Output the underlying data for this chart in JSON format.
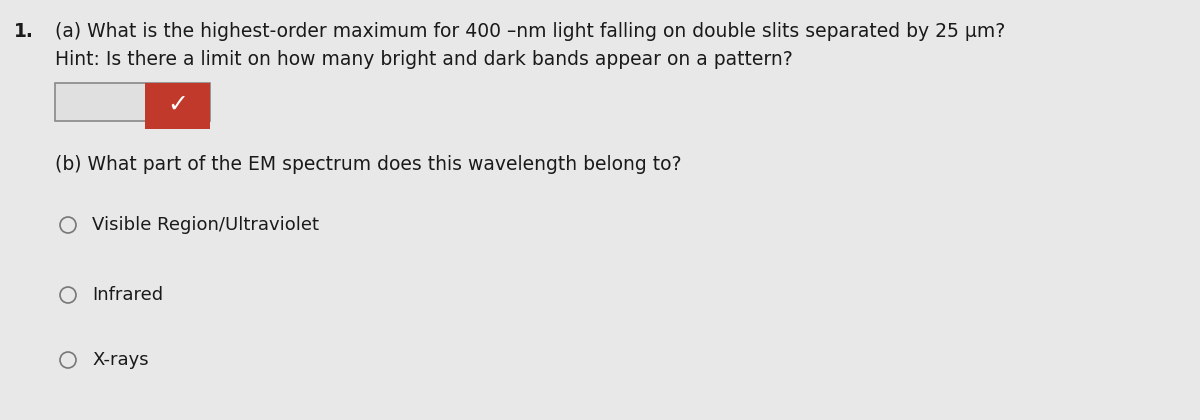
{
  "background_color": "#e8e8e8",
  "question_number": "1.",
  "part_a_line1": "(a) What is the highest-order maximum for 400 –nm light falling on double slits separated by 25 μm?",
  "part_a_line2": "Hint: Is there a limit on how many bright and dark bands appear on a pattern?",
  "part_b_text": "(b) What part of the EM spectrum does this wavelength belong to?",
  "options": [
    "Visible Region/Ultraviolet",
    "Infrared",
    "X-rays"
  ],
  "checkmark_color": "#c0392b",
  "text_color": "#1a1a1a",
  "font_size_main": 13.5,
  "font_size_options": 13.0,
  "circle_color": "#777777",
  "box_face_color": "#dcdcdc",
  "box_edge_color": "#888888"
}
